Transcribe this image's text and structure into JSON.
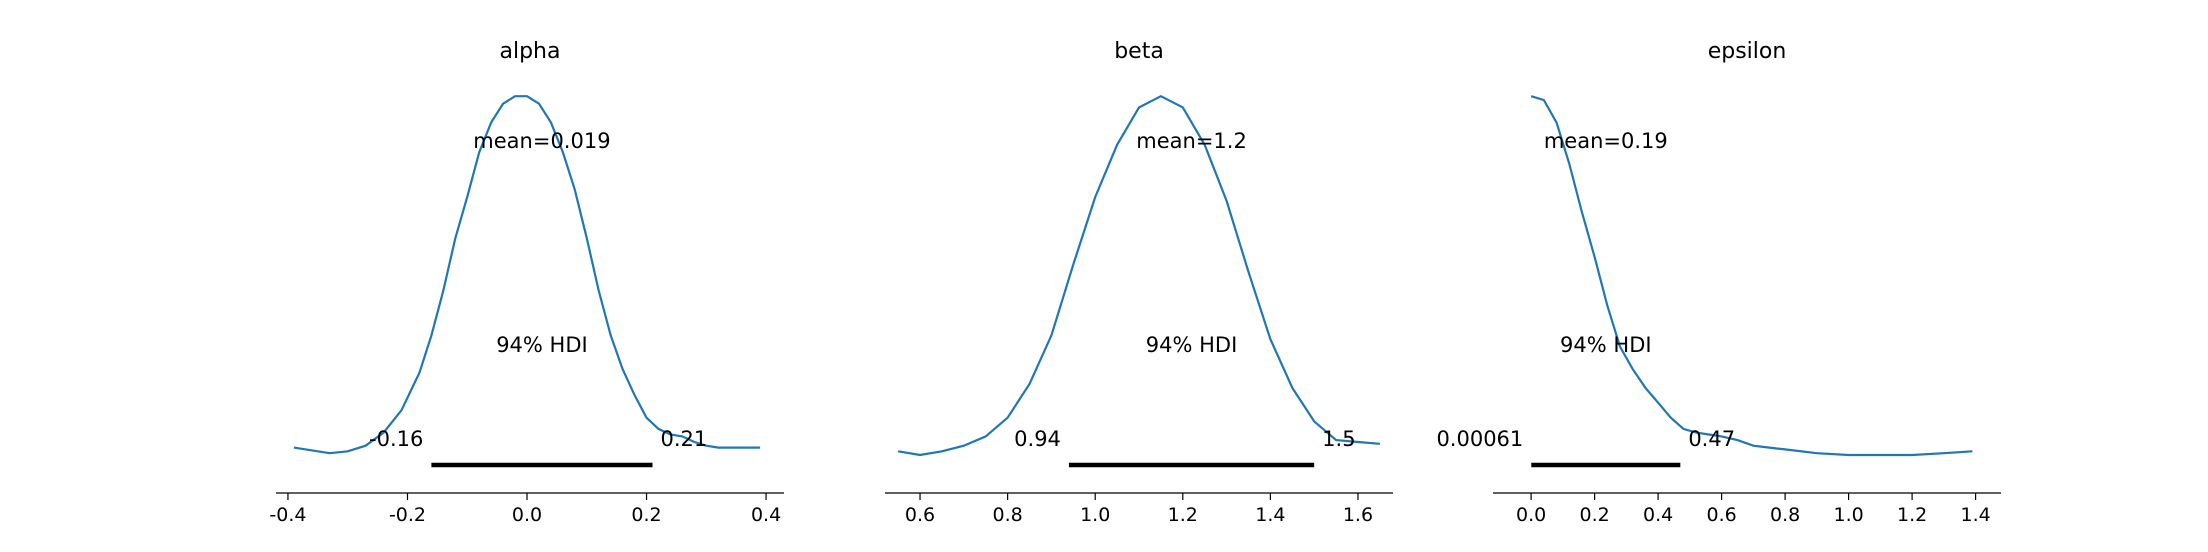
{
  "chart_data": [
    {
      "type": "line",
      "title": "alpha",
      "xlim": [
        -0.42,
        0.43
      ],
      "xticks": [
        "-0.4",
        "-0.2",
        "0.0",
        "0.2",
        "0.4"
      ],
      "xtick_values": [
        -0.4,
        -0.2,
        0.0,
        0.2,
        0.4
      ],
      "ylim": [
        0,
        1.03
      ],
      "x": [
        -0.39,
        -0.35,
        -0.33,
        -0.3,
        -0.27,
        -0.24,
        -0.21,
        -0.18,
        -0.16,
        -0.14,
        -0.12,
        -0.1,
        -0.08,
        -0.06,
        -0.04,
        -0.02,
        0.0,
        0.02,
        0.04,
        0.06,
        0.08,
        0.1,
        0.12,
        0.14,
        0.16,
        0.18,
        0.2,
        0.22,
        0.24,
        0.26,
        0.28,
        0.3,
        0.32,
        0.35,
        0.39
      ],
      "y": [
        0.06,
        0.05,
        0.045,
        0.05,
        0.065,
        0.1,
        0.16,
        0.26,
        0.36,
        0.48,
        0.62,
        0.73,
        0.85,
        0.93,
        0.98,
        1.0,
        1.0,
        0.98,
        0.93,
        0.85,
        0.75,
        0.62,
        0.48,
        0.36,
        0.27,
        0.2,
        0.14,
        0.11,
        0.095,
        0.09,
        0.075,
        0.065,
        0.06,
        0.06,
        0.06
      ],
      "mean_label": "mean=0.019",
      "hdi_label": "94% HDI",
      "hdi": [
        -0.16,
        0.21
      ],
      "hdi_low_label": "-0.16",
      "hdi_high_label": "0.21",
      "color": "#1f77b4"
    },
    {
      "type": "line",
      "title": "beta",
      "xlim": [
        0.52,
        1.68
      ],
      "xticks": [
        "0.6",
        "0.8",
        "1.0",
        "1.2",
        "1.4",
        "1.6"
      ],
      "xtick_values": [
        0.6,
        0.8,
        1.0,
        1.2,
        1.4,
        1.6
      ],
      "ylim": [
        0,
        1.03
      ],
      "x": [
        0.55,
        0.6,
        0.65,
        0.7,
        0.75,
        0.8,
        0.85,
        0.9,
        0.95,
        1.0,
        1.05,
        1.1,
        1.15,
        1.2,
        1.25,
        1.3,
        1.35,
        1.4,
        1.45,
        1.5,
        1.55,
        1.6,
        1.65
      ],
      "y": [
        0.05,
        0.04,
        0.05,
        0.065,
        0.09,
        0.14,
        0.23,
        0.36,
        0.55,
        0.73,
        0.87,
        0.97,
        1.0,
        0.97,
        0.87,
        0.72,
        0.53,
        0.35,
        0.22,
        0.13,
        0.08,
        0.075,
        0.07
      ],
      "mean_label": "mean=1.2",
      "hdi_label": "94% HDI",
      "hdi": [
        0.94,
        1.5
      ],
      "hdi_low_label": "0.94",
      "hdi_high_label": "1.5",
      "color": "#1f77b4"
    },
    {
      "type": "line",
      "title": "epsilon",
      "xlim": [
        -0.12,
        1.48
      ],
      "xticks": [
        "0.0",
        "0.2",
        "0.4",
        "0.6",
        "0.8",
        "1.0",
        "1.2",
        "1.4"
      ],
      "xtick_values": [
        0.0,
        0.2,
        0.4,
        0.6,
        0.8,
        1.0,
        1.2,
        1.4
      ],
      "ylim": [
        0,
        1.03
      ],
      "x": [
        0.0,
        0.04,
        0.08,
        0.12,
        0.16,
        0.2,
        0.24,
        0.28,
        0.32,
        0.36,
        0.4,
        0.44,
        0.48,
        0.52,
        0.56,
        0.6,
        0.65,
        0.7,
        0.75,
        0.8,
        0.9,
        1.0,
        1.1,
        1.2,
        1.3,
        1.39
      ],
      "y": [
        1.0,
        0.99,
        0.93,
        0.82,
        0.69,
        0.57,
        0.44,
        0.33,
        0.27,
        0.22,
        0.18,
        0.14,
        0.11,
        0.1,
        0.095,
        0.09,
        0.08,
        0.065,
        0.06,
        0.055,
        0.045,
        0.04,
        0.04,
        0.04,
        0.045,
        0.05
      ],
      "mean_label": "mean=0.19",
      "hdi_label": "94% HDI",
      "hdi": [
        0.00061,
        0.47
      ],
      "hdi_low_label": "0.00061",
      "hdi_high_label": "0.47",
      "color": "#1f77b4"
    }
  ]
}
